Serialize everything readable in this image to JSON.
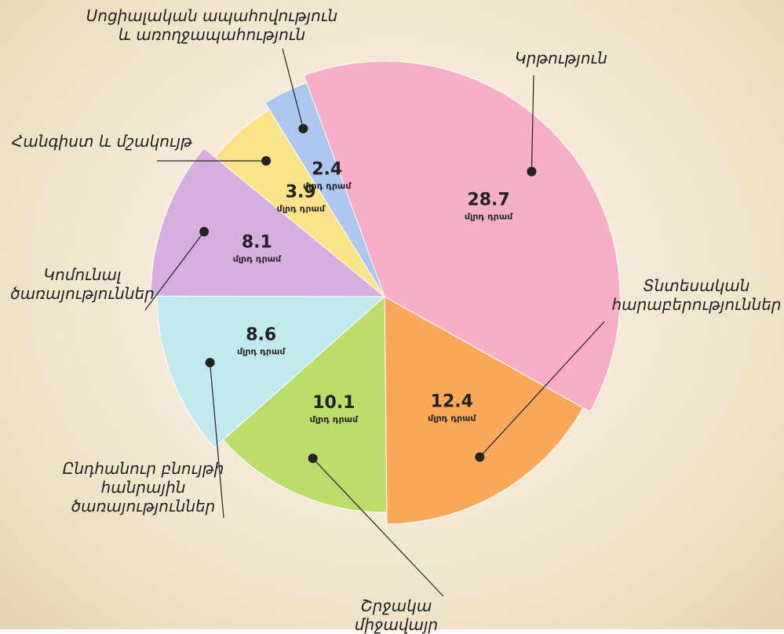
{
  "chart_data": {
    "type": "pie",
    "categories": [
      "Կրթություն",
      "Տնտեսական\nհարաբերություններ",
      "Շրջակա միջավայր",
      "Ընդհանուր բնույթի\nհանրային\nծառայություններ",
      "Կոմունալ\nծառայություններ",
      "Հանգիստ և մշակույթ",
      "Սոցիալական ապահովություն\nև առողջապահություն"
    ],
    "values": [
      28.7,
      12.4,
      10.1,
      8.6,
      8.1,
      3.9,
      2.4
    ],
    "colors": [
      "#f7afc6",
      "#fba85a",
      "#bcdc6c",
      "#c2e8f0",
      "#d5b0de",
      "#fbe38a",
      "#adc7ee"
    ],
    "unit": "մլրդ դրամ"
  }
}
